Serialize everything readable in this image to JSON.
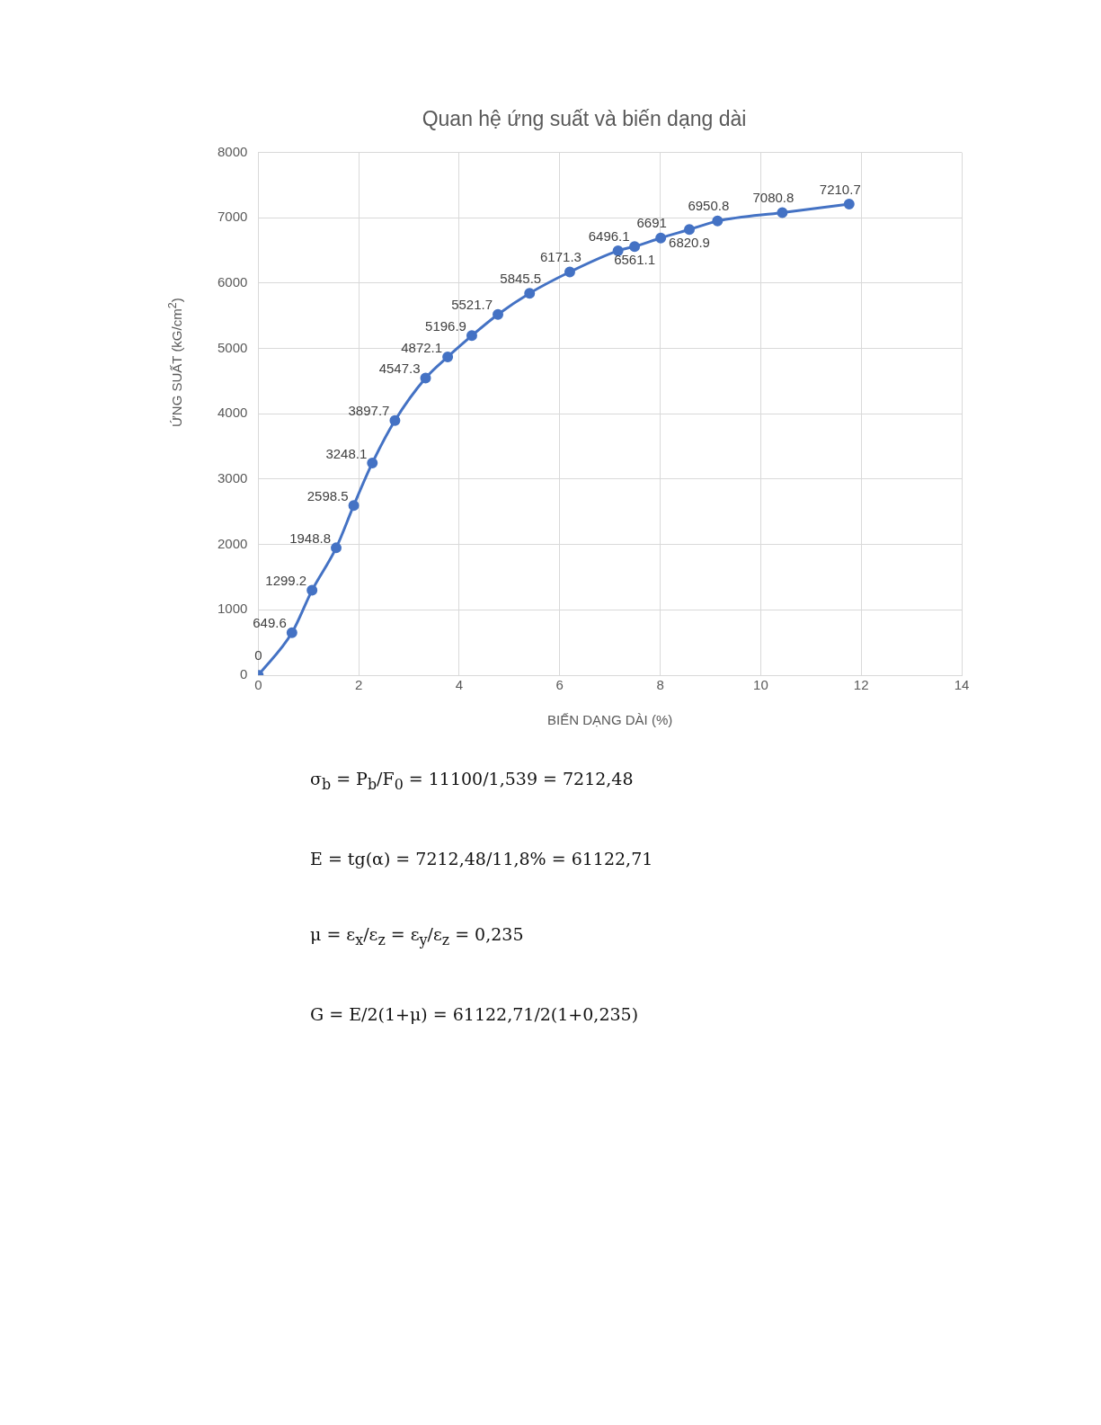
{
  "chart_data": {
    "type": "line",
    "title": "Quan hệ ứng suất và biến dạng dài",
    "xlabel": "BIẾN DẠNG DÀI (%)",
    "ylabel": "ỨNG SUẤT (kG/cm$^{2}$)",
    "x": [
      0,
      0.67,
      1.07,
      1.55,
      1.9,
      2.27,
      2.72,
      3.33,
      3.77,
      4.25,
      4.77,
      5.4,
      6.2,
      7.16,
      7.49,
      8.01,
      8.58,
      9.14,
      10.43,
      11.76
    ],
    "series": [
      {
        "color": "#4472c4",
        "values": [
          0,
          649.6,
          1299.2,
          1948.8,
          2598.5,
          3248.1,
          3897.7,
          4547.3,
          4872.1,
          5196.9,
          5521.7,
          5845.5,
          6171.3,
          6496.1,
          6561.1,
          6691,
          6820.9,
          6950.8,
          7080.8,
          7210.7
        ]
      }
    ],
    "xlim": [
      0,
      14
    ],
    "xticks": [
      0,
      2,
      4,
      6,
      8,
      10,
      12,
      14
    ],
    "ylim": [
      0,
      8000
    ],
    "yticks": [
      0,
      1000,
      2000,
      3000,
      4000,
      5000,
      6000,
      7000,
      8000
    ],
    "grid": true,
    "legend": false,
    "marker": "circle",
    "line_style": "solid",
    "data_labels": true,
    "annotations": [
      "σ$_{b}$ = P$_{b}$/F$_{0}$ = 11100/1,539 = 7212,48",
      "E = tg(α) = 7212,48/11,8% = 61122,71",
      "μ = ε$_{x}$/ε$_{z}$ = ε$_{y}$/ε$_{z}$ = 0,235",
      "G = E/2(1+μ) = 61122,71/2(1+0,235)"
    ]
  }
}
